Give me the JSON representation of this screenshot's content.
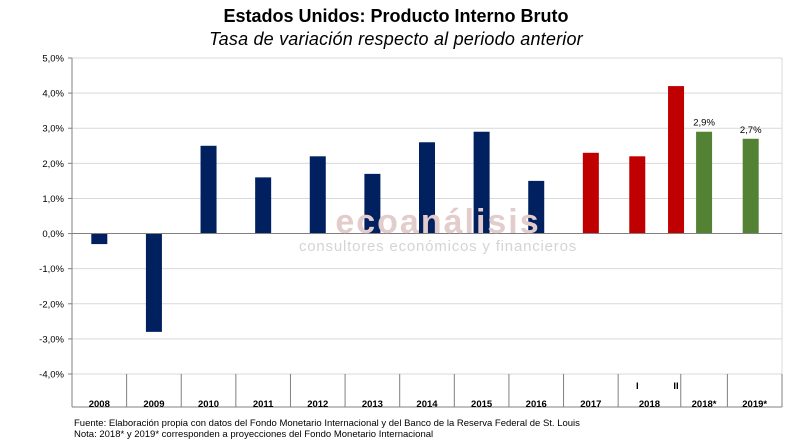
{
  "header": {
    "title": "Estados Unidos: Producto Interno Bruto",
    "subtitle": "Tasa de variación respecto al periodo anterior"
  },
  "watermark": {
    "brand": "ecoanálisis",
    "tagline": "consultores económicos y financieros"
  },
  "footer": {
    "source": "Fuente: Elaboración propia con datos del Fondo Monetario Internacional y del Banco de la Reserva Federal de St. Louis",
    "note": "Nota: 2018* y 2019* corresponden a proyecciones del Fondo Monetario Internacional"
  },
  "colors": {
    "historical": "#002060",
    "quarters": "#C00000",
    "projection": "#548235"
  },
  "chart_data": {
    "type": "bar",
    "title": "Estados Unidos: Producto Interno Bruto",
    "subtitle": "Tasa de variación respecto al periodo anterior",
    "ylim": [
      -4.0,
      5.0
    ],
    "ytick_step": 1.0,
    "ytick_labels": [
      "-4,0%",
      "-3,0%",
      "-2,0%",
      "-1,0%",
      "0,0%",
      "1,0%",
      "2,0%",
      "3,0%",
      "4,0%",
      "5,0%"
    ],
    "grid": true,
    "categories": [
      "2008",
      "2009",
      "2010",
      "2011",
      "2012",
      "2013",
      "2014",
      "2015",
      "2016",
      "2017",
      "I",
      "II",
      "2018*",
      "2019*"
    ],
    "values": [
      -0.3,
      -2.8,
      2.5,
      1.6,
      2.2,
      1.7,
      2.6,
      2.9,
      1.5,
      2.3,
      2.2,
      4.2,
      2.9,
      2.7
    ],
    "bar_colors": [
      "historical",
      "historical",
      "historical",
      "historical",
      "historical",
      "historical",
      "historical",
      "historical",
      "historical",
      "quarters",
      "quarters",
      "quarters",
      "projection",
      "projection"
    ],
    "data_labels": [
      "",
      "",
      "",
      "",
      "",
      "",
      "",
      "",
      "",
      "",
      "",
      "",
      "2,9%",
      "2,7%"
    ],
    "x_groups": [
      {
        "label": "2008"
      },
      {
        "label": "2009"
      },
      {
        "label": "2010"
      },
      {
        "label": "2011"
      },
      {
        "label": "2012"
      },
      {
        "label": "2013"
      },
      {
        "label": "2014"
      },
      {
        "label": "2015"
      },
      {
        "label": "2016"
      },
      {
        "label": "2017"
      },
      {
        "label": "2018",
        "sub": [
          "I",
          "II"
        ]
      },
      {
        "label": "2018*"
      },
      {
        "label": "2019*"
      }
    ]
  }
}
